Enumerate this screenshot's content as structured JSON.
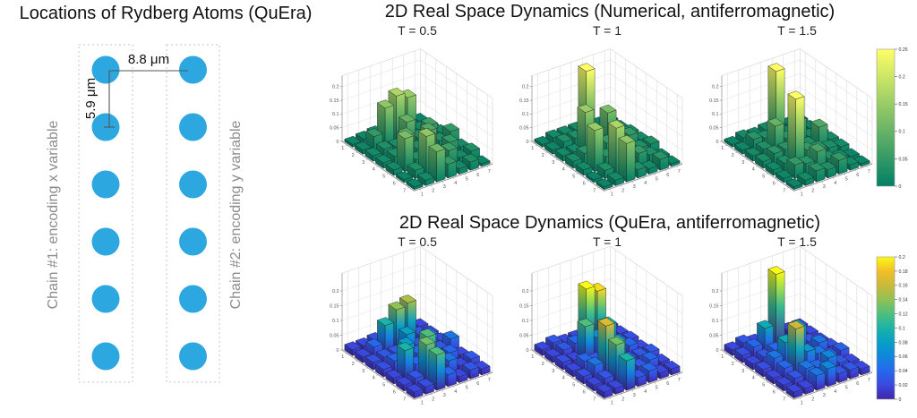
{
  "left_panel": {
    "title": "Locations of Rydberg Atoms (QuEra)",
    "chains": [
      {
        "label": "Chain #1: encoding x variable",
        "atoms": 6
      },
      {
        "label": "Chain #2: encoding y variable",
        "atoms": 6
      }
    ],
    "annotations": {
      "column_spacing": "8.8 μm",
      "row_spacing": "5.9 μm"
    },
    "atom_color": "#2da7df",
    "label_color": "#8c8c8c"
  },
  "sections": {
    "numerical": "2D Real Space Dynamics (Numerical, antiferromagnetic)",
    "quera": "2D Real Space Dynamics (QuEra, antiferromagnetic)"
  },
  "chart_data": [
    {
      "type": "bar",
      "projection": "3d",
      "section": "Numerical",
      "title": "T = 0.5",
      "colormap": "summer",
      "x": [
        1,
        2,
        3,
        4,
        5,
        6,
        7
      ],
      "y": [
        1,
        2,
        3,
        4,
        5,
        6,
        7
      ],
      "zticks": [
        0,
        0.05,
        0.1,
        0.15,
        0.2
      ],
      "color_range": [
        0,
        0.25
      ],
      "values": [
        [
          0.01,
          0.015,
          0.02,
          0.02,
          0.015,
          0.01,
          0.01
        ],
        [
          0.015,
          0.05,
          0.14,
          0.17,
          0.15,
          0.02,
          0.015
        ],
        [
          0.02,
          0.03,
          0.025,
          0.1,
          0.03,
          0.06,
          0.02
        ],
        [
          0.02,
          0.03,
          0.09,
          0.03,
          0.08,
          0.03,
          0.05
        ],
        [
          0.02,
          0.12,
          0.03,
          0.1,
          0.03,
          0.05,
          0.02
        ],
        [
          0.01,
          0.03,
          0.14,
          0.03,
          0.06,
          0.02,
          0.03
        ],
        [
          0.01,
          0.02,
          0.11,
          0.05,
          0.02,
          0.03,
          0.01
        ]
      ]
    },
    {
      "type": "bar",
      "projection": "3d",
      "section": "Numerical",
      "title": "T = 1",
      "colormap": "summer",
      "x": [
        1,
        2,
        3,
        4,
        5,
        6,
        7
      ],
      "y": [
        1,
        2,
        3,
        4,
        5,
        6,
        7
      ],
      "zticks": [
        0,
        0.05,
        0.1,
        0.15,
        0.2
      ],
      "color_range": [
        0,
        0.25
      ],
      "values": [
        [
          0.01,
          0.02,
          0.02,
          0.02,
          0.015,
          0.01,
          0.01
        ],
        [
          0.015,
          0.03,
          0.03,
          0.26,
          0.03,
          0.02,
          0.01
        ],
        [
          0.02,
          0.02,
          0.15,
          0.04,
          0.12,
          0.03,
          0.02
        ],
        [
          0.025,
          0.04,
          0.03,
          0.05,
          0.03,
          0.05,
          0.02
        ],
        [
          0.02,
          0.15,
          0.04,
          0.1,
          0.03,
          0.03,
          0.03
        ],
        [
          0.01,
          0.03,
          0.17,
          0.04,
          0.05,
          0.03,
          0.01
        ],
        [
          0.01,
          0.02,
          0.14,
          0.03,
          0.02,
          0.04,
          0.01
        ]
      ]
    },
    {
      "type": "bar",
      "projection": "3d",
      "section": "Numerical",
      "title": "T = 1.5",
      "colormap": "summer",
      "x": [
        1,
        2,
        3,
        4,
        5,
        6,
        7
      ],
      "y": [
        1,
        2,
        3,
        4,
        5,
        6,
        7
      ],
      "zticks": [
        0,
        0.05,
        0.1,
        0.15,
        0.2
      ],
      "color_range": [
        0,
        0.25
      ],
      "values": [
        [
          0.01,
          0.02,
          0.015,
          0.02,
          0.01,
          0.01,
          0.01
        ],
        [
          0.015,
          0.04,
          0.03,
          0.26,
          0.02,
          0.02,
          0.01
        ],
        [
          0.02,
          0.03,
          0.1,
          0.04,
          0.09,
          0.02,
          0.02
        ],
        [
          0.025,
          0.04,
          0.04,
          0.04,
          0.03,
          0.08,
          0.02
        ],
        [
          0.02,
          0.03,
          0.25,
          0.05,
          0.04,
          0.03,
          0.02
        ],
        [
          0.015,
          0.05,
          0.04,
          0.07,
          0.03,
          0.02,
          0.01
        ],
        [
          0.01,
          0.02,
          0.04,
          0.03,
          0.05,
          0.02,
          0.01
        ]
      ]
    },
    {
      "type": "bar",
      "projection": "3d",
      "section": "QuEra",
      "title": "T = 0.5",
      "colormap": "parula",
      "x": [
        1,
        2,
        3,
        4,
        5,
        6,
        7
      ],
      "y": [
        1,
        2,
        3,
        4,
        5,
        6,
        7
      ],
      "zticks": [
        0,
        0.05,
        0.1,
        0.15,
        0.2
      ],
      "color_range": [
        0,
        0.2
      ],
      "values": [
        [
          0.02,
          0.02,
          0.025,
          0.03,
          0.02,
          0.02,
          0.02
        ],
        [
          0.02,
          0.04,
          0.1,
          0.14,
          0.15,
          0.03,
          0.02
        ],
        [
          0.025,
          0.03,
          0.03,
          0.08,
          0.03,
          0.05,
          0.02
        ],
        [
          0.025,
          0.04,
          0.08,
          0.04,
          0.07,
          0.03,
          0.05
        ],
        [
          0.02,
          0.1,
          0.04,
          0.12,
          0.03,
          0.04,
          0.02
        ],
        [
          0.02,
          0.03,
          0.13,
          0.04,
          0.05,
          0.02,
          0.03
        ],
        [
          0.02,
          0.025,
          0.12,
          0.04,
          0.02,
          0.03,
          0.02
        ]
      ]
    },
    {
      "type": "bar",
      "projection": "3d",
      "section": "QuEra",
      "title": "T = 1",
      "colormap": "parula",
      "x": [
        1,
        2,
        3,
        4,
        5,
        6,
        7
      ],
      "y": [
        1,
        2,
        3,
        4,
        5,
        6,
        7
      ],
      "zticks": [
        0,
        0.05,
        0.1,
        0.15,
        0.2
      ],
      "color_range": [
        0,
        0.2
      ],
      "values": [
        [
          0.02,
          0.03,
          0.02,
          0.02,
          0.02,
          0.02,
          0.02
        ],
        [
          0.02,
          0.03,
          0.04,
          0.21,
          0.19,
          0.03,
          0.02
        ],
        [
          0.025,
          0.02,
          0.12,
          0.07,
          0.1,
          0.03,
          0.025
        ],
        [
          0.02,
          0.04,
          0.03,
          0.05,
          0.03,
          0.04,
          0.02
        ],
        [
          0.025,
          0.05,
          0.17,
          0.1,
          0.03,
          0.03,
          0.03
        ],
        [
          0.02,
          0.03,
          0.13,
          0.04,
          0.03,
          0.04,
          0.02
        ],
        [
          0.02,
          0.02,
          0.1,
          0.03,
          0.04,
          0.02,
          0.02
        ]
      ]
    },
    {
      "type": "bar",
      "projection": "3d",
      "section": "QuEra",
      "title": "T = 1.5",
      "colormap": "parula",
      "x": [
        1,
        2,
        3,
        4,
        5,
        6,
        7
      ],
      "y": [
        1,
        2,
        3,
        4,
        5,
        6,
        7
      ],
      "zticks": [
        0,
        0.05,
        0.1,
        0.15,
        0.2
      ],
      "color_range": [
        0,
        0.2
      ],
      "values": [
        [
          0.02,
          0.03,
          0.02,
          0.02,
          0.02,
          0.02,
          0.02
        ],
        [
          0.025,
          0.04,
          0.09,
          0.26,
          0.02,
          0.03,
          0.02
        ],
        [
          0.02,
          0.03,
          0.04,
          0.05,
          0.09,
          0.03,
          0.02
        ],
        [
          0.025,
          0.05,
          0.09,
          0.04,
          0.03,
          0.05,
          0.025
        ],
        [
          0.02,
          0.04,
          0.16,
          0.07,
          0.05,
          0.03,
          0.035
        ],
        [
          0.02,
          0.03,
          0.05,
          0.04,
          0.06,
          0.03,
          0.02
        ],
        [
          0.02,
          0.02,
          0.05,
          0.06,
          0.03,
          0.03,
          0.02
        ]
      ]
    }
  ],
  "colorbars": [
    {
      "colormap": "summer",
      "range": [
        0,
        0.25
      ],
      "ticks": [
        0,
        0.05,
        0.1,
        0.15,
        0.2,
        0.25
      ]
    },
    {
      "colormap": "parula",
      "range": [
        0,
        0.2
      ],
      "ticks": [
        0,
        0.02,
        0.04,
        0.06,
        0.08,
        0.1,
        0.12,
        0.14,
        0.16,
        0.18,
        0.2
      ]
    }
  ]
}
